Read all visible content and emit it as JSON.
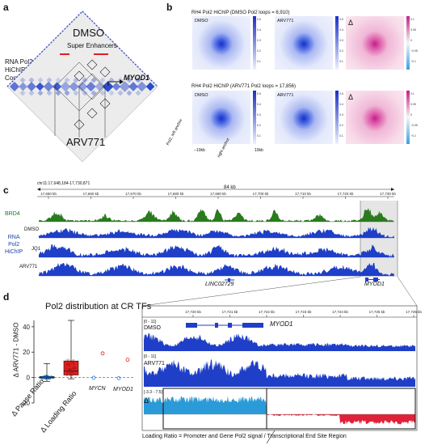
{
  "panels": {
    "a": {
      "letter": "a",
      "y_label": [
        "RNA Pol2",
        "HiChIP",
        "Contacts"
      ],
      "top_condition": "DMSO",
      "bottom_condition": "ARV771",
      "super_enhancers_label": "Super Enhancers",
      "gene_label": "MYOD1"
    },
    "b": {
      "letter": "b",
      "row1_title": "RH4 Pol2 HiChIP (DMSO Pol2 loops = 6,910)",
      "row2_title": "RH4 Pol2 HiChIP (ARV771 Pol2 loops = 17,856)",
      "map_labels": [
        "DMSO",
        "ARV771",
        "Δ"
      ],
      "axis_left_label": "−10kb",
      "axis_right_label": "10kb",
      "left_anchor_label": "Pol2, left anchor",
      "right_anchor_label": "right anchor",
      "colorbar_ticks_blue": [
        "0.5",
        "0.4",
        "0.3",
        "0.2",
        "0.1"
      ],
      "colorbar_ticks_delta": [
        "0.1",
        "0.05",
        "0",
        "−0.05",
        "−0.1"
      ]
    },
    "c": {
      "letter": "c",
      "locus": "chr11:17,648,184-17,730,871",
      "span": "84 kb",
      "ticks": [
        "17,650 kb",
        "17,660 kb",
        "17,670 kb",
        "17,680 kb",
        "17,690 kb",
        "17,700 kb",
        "17,710 kb",
        "17,720 kb",
        "17,730 kb"
      ],
      "tracks": [
        "BRD4",
        "DMSO",
        "JQ1",
        "ARV771"
      ],
      "group_label": [
        "RNA",
        "Pol2",
        "HiChIP"
      ],
      "genes": [
        "LINC02729",
        "MYOD1"
      ]
    },
    "d": {
      "letter": "d",
      "title": "Pol2 distribution at CR TFs",
      "y_label": "Δ ARV771 - DMSO",
      "y_ticks": [
        "40",
        "20",
        "0",
        "-20"
      ],
      "x_labels": [
        "Δ Pause Ratio",
        "Δ Loading Ratio"
      ],
      "outlier_genes": [
        "MYCN",
        "MYOD1"
      ],
      "zoom_ticks": [
        "17,720 kb",
        "17,721 kb",
        "17,722 kb",
        "17,723 kb",
        "17,724 kb",
        "17,725 kb",
        "17,726 kb"
      ],
      "zoom_tracks": [
        "DMSO",
        "ARV771",
        "Δ"
      ],
      "range_labels": [
        "[0 - 11]",
        "[0 - 11]",
        "[-3.3 - 7.5]"
      ],
      "gene": "MYOD1",
      "footer": "Loading Ratio = Promoter and Gene Pol2 signal / Transcriptional End Site Region"
    }
  },
  "chart_data": {
    "type": "box",
    "title": "Pol2 distribution at CR TFs",
    "ylabel": "Δ ARV771 - DMSO",
    "ylim": [
      -20,
      45
    ],
    "categories": [
      "Δ Pause Ratio",
      "Δ Loading Ratio"
    ],
    "boxes": [
      {
        "name": "Δ Pause Ratio",
        "min": -3,
        "q1": -0.5,
        "median": 0.2,
        "q3": 0.8,
        "max": 11
      },
      {
        "name": "Δ Loading Ratio",
        "min": -1,
        "q1": 2,
        "median": 5,
        "q3": 13,
        "max": 45
      }
    ],
    "annotated_points": [
      {
        "label": "MYCN",
        "pause": -0.2,
        "loading": 19
      },
      {
        "label": "MYOD1",
        "pause": -0.5,
        "loading": 14
      }
    ]
  },
  "colors": {
    "pol2_blue": "#1f3fc8",
    "brd4_green": "#2a7a1e",
    "delta_pink": "#cf2f8f",
    "delta_red": "#e0213a",
    "delta_cyan": "#2a9bd8",
    "box_red": "#e02020"
  }
}
